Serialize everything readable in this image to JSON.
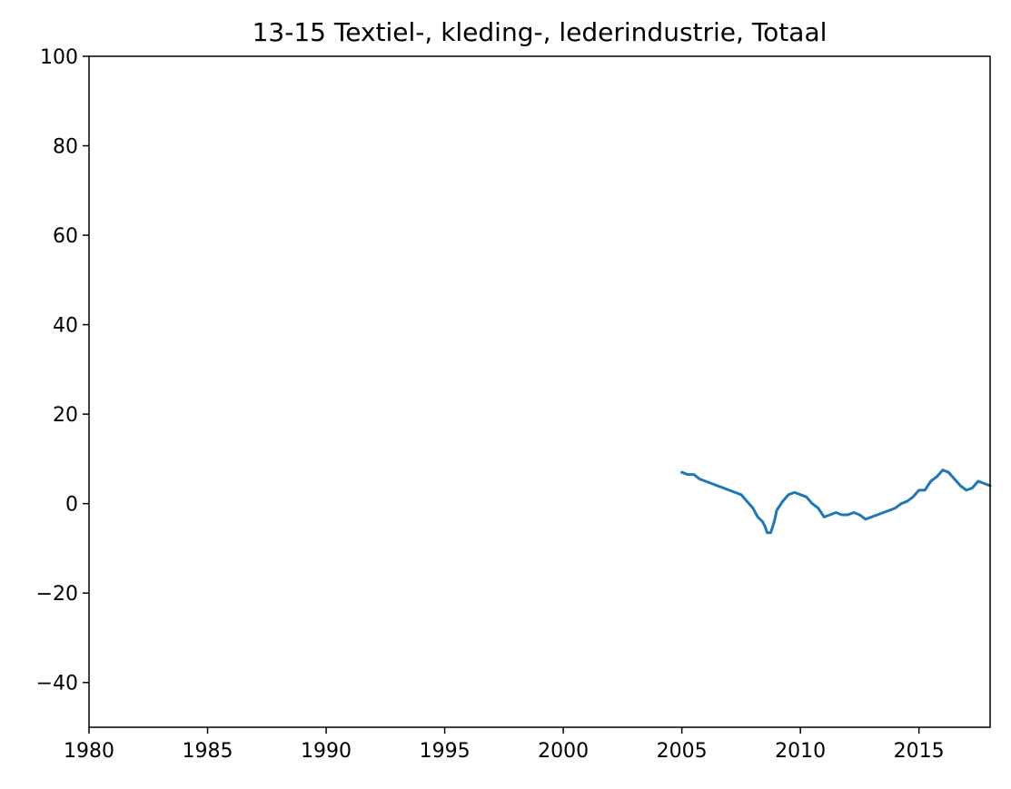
{
  "chart_data": {
    "type": "line",
    "title": "13-15 Textiel-, kleding-, lederindustrie, Totaal",
    "xlabel": "",
    "ylabel": "",
    "xlim": [
      1980,
      2018
    ],
    "ylim": [
      -50,
      100
    ],
    "xticks": [
      1980,
      1985,
      1990,
      1995,
      2000,
      2005,
      2010,
      2015
    ],
    "xtick_labels": [
      "1980",
      "1985",
      "1990",
      "1995",
      "2000",
      "2005",
      "2010",
      "2015"
    ],
    "yticks": [
      -40,
      -20,
      0,
      20,
      40,
      60,
      80,
      100
    ],
    "ytick_labels": [
      "−40",
      "−20",
      "0",
      "20",
      "40",
      "60",
      "80",
      "100"
    ],
    "grid": false,
    "legend": "none",
    "series": [
      {
        "color": "#1f77b4",
        "x": [
          2005.0,
          2005.25,
          2005.5,
          2005.75,
          2006.0,
          2006.25,
          2006.5,
          2006.75,
          2007.0,
          2007.25,
          2007.5,
          2007.75,
          2008.0,
          2008.2,
          2008.4,
          2008.5,
          2008.6,
          2008.75,
          2008.9,
          2009.0,
          2009.25,
          2009.5,
          2009.75,
          2010.0,
          2010.25,
          2010.5,
          2010.75,
          2011.0,
          2011.25,
          2011.5,
          2011.75,
          2012.0,
          2012.25,
          2012.5,
          2012.75,
          2013.0,
          2013.25,
          2013.5,
          2013.75,
          2014.0,
          2014.25,
          2014.5,
          2014.75,
          2015.0,
          2015.25,
          2015.5,
          2015.75,
          2016.0,
          2016.25,
          2016.5,
          2016.75,
          2017.0,
          2017.25,
          2017.5,
          2017.75,
          2018.0
        ],
        "y": [
          7.0,
          6.5,
          6.5,
          5.5,
          5.0,
          4.5,
          4.0,
          3.5,
          3.0,
          2.5,
          2.0,
          0.5,
          -1.0,
          -3.0,
          -4.0,
          -5.0,
          -6.5,
          -6.5,
          -4.0,
          -1.5,
          0.5,
          2.0,
          2.5,
          2.0,
          1.5,
          0.0,
          -1.0,
          -3.0,
          -2.5,
          -2.0,
          -2.5,
          -2.5,
          -2.0,
          -2.5,
          -3.5,
          -3.0,
          -2.5,
          -2.0,
          -1.5,
          -1.0,
          0.0,
          0.5,
          1.5,
          3.0,
          3.0,
          5.0,
          6.0,
          7.5,
          7.0,
          5.5,
          4.0,
          3.0,
          3.5,
          5.0,
          4.5,
          4.0
        ]
      }
    ]
  }
}
